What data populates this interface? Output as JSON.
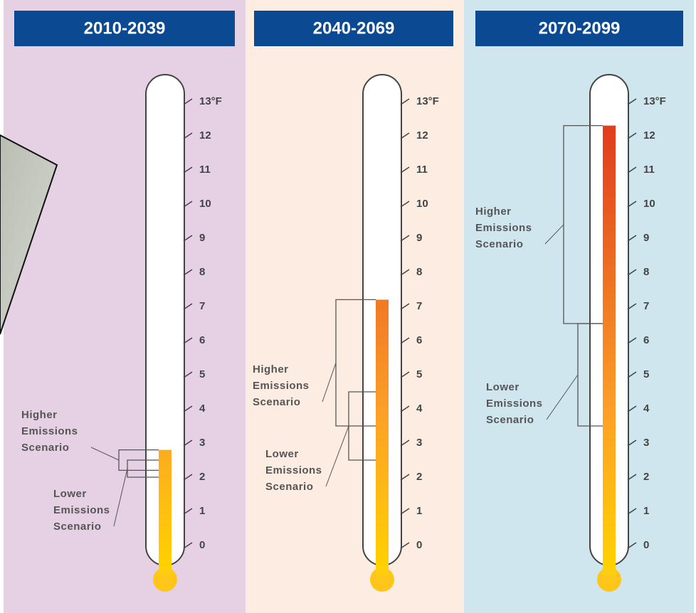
{
  "chart_data": [
    {
      "type": "thermometer",
      "title": "2010-2039",
      "ylim": [
        0,
        13
      ],
      "yticks": [
        0,
        1,
        2,
        3,
        4,
        5,
        6,
        7,
        8,
        9,
        10,
        11,
        12,
        {
          "value": 13,
          "label": "13°F"
        }
      ],
      "background": "#e6d0e4",
      "ranges": [
        {
          "name": "Higher Emissions Scenario",
          "values": [
            2.2,
            2.8
          ]
        },
        {
          "name": "Lower Emissions Scenario",
          "values": [
            2.0,
            2.5
          ]
        }
      ]
    },
    {
      "type": "thermometer",
      "title": "2040-2069",
      "ylim": [
        0,
        13
      ],
      "yticks": [
        0,
        1,
        2,
        3,
        4,
        5,
        6,
        7,
        8,
        9,
        10,
        11,
        12,
        {
          "value": 13,
          "label": "13°F"
        }
      ],
      "background": "#fcece2",
      "ranges": [
        {
          "name": "Higher Emissions Scenario",
          "values": [
            3.5,
            7.2
          ]
        },
        {
          "name": "Lower Emissions Scenario",
          "values": [
            2.5,
            4.5
          ]
        }
      ]
    },
    {
      "type": "thermometer",
      "title": "2070-2099",
      "ylim": [
        0,
        13
      ],
      "yticks": [
        0,
        1,
        2,
        3,
        4,
        5,
        6,
        7,
        8,
        9,
        10,
        11,
        12,
        {
          "value": 13,
          "label": "13°F"
        }
      ],
      "background": "#cfe6ef",
      "ranges": [
        {
          "name": "Higher Emissions Scenario",
          "values": [
            6.5,
            12.3
          ]
        },
        {
          "name": "Lower Emissions Scenario",
          "values": [
            3.5,
            6.5
          ]
        }
      ]
    }
  ]
}
